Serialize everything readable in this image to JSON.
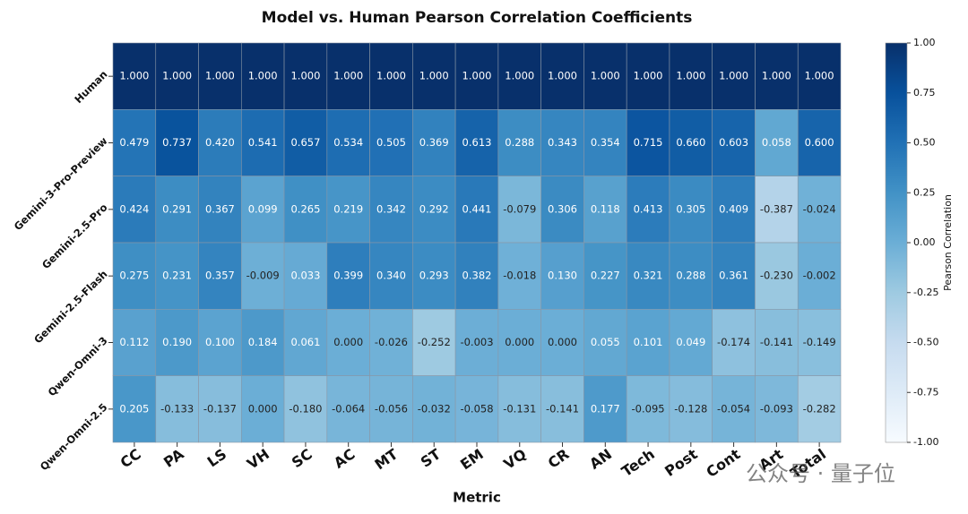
{
  "chart_data": {
    "type": "heatmap",
    "title": "Model vs. Human Pearson Correlation Coefficients",
    "xlabel": "Metric",
    "x": [
      "CC",
      "PA",
      "LS",
      "VH",
      "SC",
      "AC",
      "MT",
      "ST",
      "EM",
      "VQ",
      "CR",
      "AN",
      "Tech",
      "Post",
      "Cont",
      "Art",
      "Total"
    ],
    "y": [
      "Human",
      "Gemini-3-Pro-Preview",
      "Gemini-2.5-Pro",
      "Gemini-2.5-Flash",
      "Qwen-Omni-3",
      "Qwen-Omni-2.5"
    ],
    "values": [
      [
        1,
        1,
        1,
        1,
        1,
        1,
        1,
        1,
        1,
        1,
        1,
        1,
        1,
        1,
        1,
        1,
        1
      ],
      [
        0.479,
        0.737,
        0.42,
        0.541,
        0.657,
        0.534,
        0.505,
        0.369,
        0.613,
        0.288,
        0.343,
        0.354,
        0.715,
        0.66,
        0.603,
        0.058,
        0.6
      ],
      [
        0.424,
        0.291,
        0.367,
        0.099,
        0.265,
        0.219,
        0.342,
        0.292,
        0.441,
        -0.079,
        0.306,
        0.118,
        0.413,
        0.305,
        0.409,
        -0.387,
        -0.024
      ],
      [
        0.275,
        0.231,
        0.357,
        -0.009,
        0.033,
        0.399,
        0.34,
        0.293,
        0.382,
        -0.018,
        0.13,
        0.227,
        0.321,
        0.288,
        0.361,
        -0.23,
        -0.002
      ],
      [
        0.112,
        0.19,
        0.1,
        0.184,
        0.061,
        0,
        -0.026,
        -0.252,
        -0.003,
        0,
        0,
        0.055,
        0.101,
        0.049,
        -0.174,
        -0.141,
        -0.149
      ],
      [
        0.205,
        -0.133,
        -0.137,
        0,
        -0.18,
        -0.064,
        -0.056,
        -0.032,
        -0.058,
        -0.131,
        -0.141,
        0.177,
        -0.095,
        -0.128,
        -0.054,
        -0.093,
        -0.282
      ]
    ],
    "value_labels": [
      [
        "1.000",
        "1.000",
        "1.000",
        "1.000",
        "1.000",
        "1.000",
        "1.000",
        "1.000",
        "1.000",
        "1.000",
        "1.000",
        "1.000",
        "1.000",
        "1.000",
        "1.000",
        "1.000",
        "1.000"
      ],
      [
        "0.479",
        "0.737",
        "0.420",
        "0.541",
        "0.657",
        "0.534",
        "0.505",
        "0.369",
        "0.613",
        "0.288",
        "0.343",
        "0.354",
        "0.715",
        "0.660",
        "0.603",
        "0.058",
        "0.600"
      ],
      [
        "0.424",
        "0.291",
        "0.367",
        "0.099",
        "0.265",
        "0.219",
        "0.342",
        "0.292",
        "0.441",
        "-0.079",
        "0.306",
        "0.118",
        "0.413",
        "0.305",
        "0.409",
        "-0.387",
        "-0.024"
      ],
      [
        "0.275",
        "0.231",
        "0.357",
        "-0.009",
        "0.033",
        "0.399",
        "0.340",
        "0.293",
        "0.382",
        "-0.018",
        "0.130",
        "0.227",
        "0.321",
        "0.288",
        "0.361",
        "-0.230",
        "-0.002"
      ],
      [
        "0.112",
        "0.190",
        "0.100",
        "0.184",
        "0.061",
        "0.000",
        "-0.026",
        "-0.252",
        "-0.003",
        "0.000",
        "0.000",
        "0.055",
        "0.101",
        "0.049",
        "-0.174",
        "-0.141",
        "-0.149"
      ],
      [
        "0.205",
        "-0.133",
        "-0.137",
        "0.000",
        "-0.180",
        "-0.064",
        "-0.056",
        "-0.032",
        "-0.058",
        "-0.131",
        "-0.141",
        "0.177",
        "-0.095",
        "-0.128",
        "-0.054",
        "-0.093",
        "-0.282"
      ]
    ],
    "colormap": "Blues",
    "clim": [
      -1,
      1
    ],
    "clabel": "Pearson Correlation",
    "cticks": [
      {
        "value": 1,
        "label": "1.00"
      },
      {
        "value": 0.75,
        "label": "0.75"
      },
      {
        "value": 0.5,
        "label": "0.50"
      },
      {
        "value": 0.25,
        "label": "0.25"
      },
      {
        "value": 0,
        "label": "0.00"
      },
      {
        "value": -0.25,
        "label": "-0.25"
      },
      {
        "value": -0.5,
        "label": "-0.50"
      },
      {
        "value": -0.75,
        "label": "-0.75"
      },
      {
        "value": -1,
        "label": "-1.00"
      }
    ],
    "watermark": "公众号 · 量子位"
  }
}
